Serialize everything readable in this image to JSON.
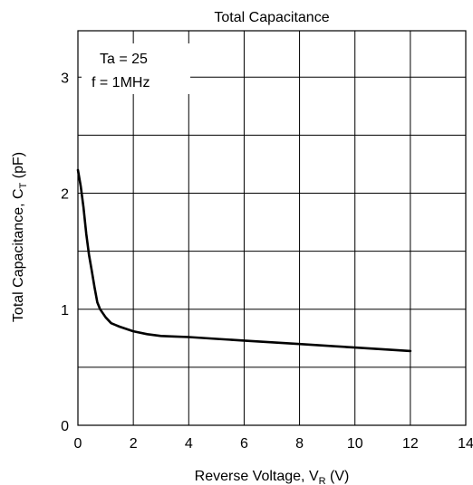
{
  "chart_data": {
    "type": "line",
    "title": "Total Capacitance",
    "xlabel": {
      "main": "Reverse Voltage, V",
      "sub": "R",
      "suffix": " (V)"
    },
    "ylabel": {
      "main": "Total Capacitance, C",
      "sub": "T",
      "suffix": " (pF)"
    },
    "xlim": [
      0,
      14
    ],
    "ylim": [
      0,
      3.4
    ],
    "x_ticks": [
      0,
      2,
      4,
      6,
      8,
      10,
      12,
      14
    ],
    "y_ticks": [
      0,
      1,
      2,
      3
    ],
    "x_gridlines": [
      2,
      4,
      6,
      8,
      10,
      12
    ],
    "y_gridlines": [
      0.5,
      1,
      1.5,
      2,
      2.5,
      3
    ],
    "grid": true,
    "annotations": [
      "Ta = 25",
      "f = 1MHz"
    ],
    "series": [
      {
        "x": [
          0,
          0.1,
          0.2,
          0.3,
          0.4,
          0.5,
          0.6,
          0.7,
          0.8,
          1.0,
          1.2,
          1.5,
          2.0,
          2.5,
          3.0,
          3.5,
          4.0,
          5.0,
          6.0,
          8.0,
          10.0,
          12.0
        ],
        "y": [
          2.2,
          2.06,
          1.88,
          1.65,
          1.47,
          1.33,
          1.19,
          1.06,
          1.0,
          0.93,
          0.88,
          0.85,
          0.81,
          0.785,
          0.77,
          0.765,
          0.76,
          0.745,
          0.73,
          0.7,
          0.67,
          0.64
        ]
      }
    ]
  }
}
